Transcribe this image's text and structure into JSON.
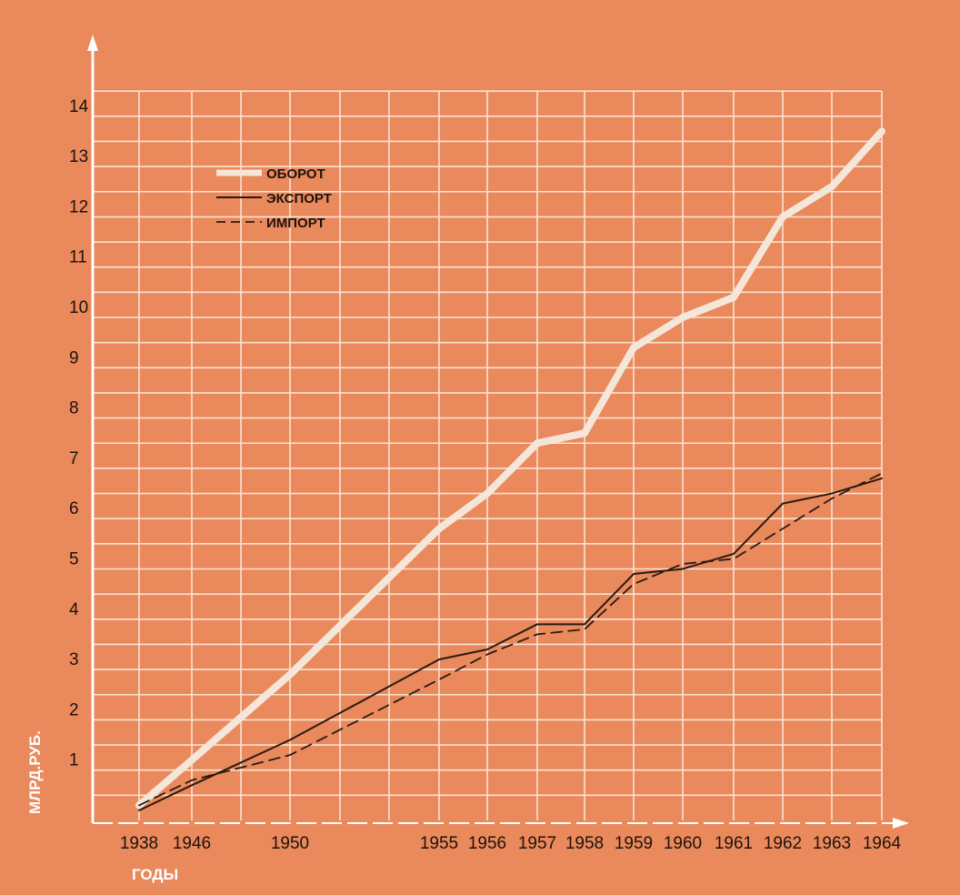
{
  "chart_data": {
    "type": "line",
    "title": "",
    "xlabel": "ГОДЫ",
    "ylabel": "МЛРД.РУБ.",
    "x": [
      1938,
      1946,
      1950,
      1955,
      1956,
      1957,
      1958,
      1959,
      1960,
      1961,
      1962,
      1963,
      1964
    ],
    "x_tick_labels": [
      "1938",
      "1946",
      "1950",
      "1955",
      "1956",
      "1957",
      "1958",
      "1959",
      "1960",
      "1961",
      "1962",
      "1963",
      "1964"
    ],
    "y_tick_labels": [
      "1",
      "2",
      "3",
      "4",
      "5",
      "6",
      "7",
      "8",
      "9",
      "10",
      "11",
      "12",
      "13",
      "14"
    ],
    "ylim": [
      0,
      14.5
    ],
    "grid": true,
    "legend_position": "top-left",
    "series": [
      {
        "name": "ОБОРОТ",
        "style": "thick-light",
        "color": "#f4e6d8",
        "points": [
          [
            1938,
            0.3
          ],
          [
            1946,
            1.2
          ],
          [
            1950,
            2.9
          ],
          [
            1955,
            5.8
          ],
          [
            1956,
            6.5
          ],
          [
            1957,
            7.5
          ],
          [
            1958,
            7.7
          ],
          [
            1959,
            9.4
          ],
          [
            1960,
            10.0
          ],
          [
            1961,
            10.4
          ],
          [
            1962,
            12.0
          ],
          [
            1963,
            12.6
          ],
          [
            1964,
            13.7
          ]
        ]
      },
      {
        "name": "ЭКСПОРТ",
        "style": "solid",
        "color": "#2a1a12",
        "points": [
          [
            1938,
            0.2
          ],
          [
            1946,
            0.7
          ],
          [
            1950,
            1.6
          ],
          [
            1955,
            3.2
          ],
          [
            1956,
            3.4
          ],
          [
            1957,
            3.9
          ],
          [
            1958,
            3.9
          ],
          [
            1959,
            4.9
          ],
          [
            1960,
            5.0
          ],
          [
            1961,
            5.3
          ],
          [
            1962,
            6.3
          ],
          [
            1963,
            6.5
          ],
          [
            1964,
            6.8
          ]
        ]
      },
      {
        "name": "ИМПОРТ",
        "style": "dashed",
        "color": "#2a1a12",
        "points": [
          [
            1938,
            0.3
          ],
          [
            1946,
            0.8
          ],
          [
            1950,
            1.3
          ],
          [
            1955,
            2.8
          ],
          [
            1956,
            3.3
          ],
          [
            1957,
            3.7
          ],
          [
            1958,
            3.8
          ],
          [
            1959,
            4.7
          ],
          [
            1960,
            5.1
          ],
          [
            1961,
            5.2
          ],
          [
            1962,
            5.8
          ],
          [
            1963,
            6.4
          ],
          [
            1964,
            6.9
          ]
        ]
      }
    ]
  },
  "colors": {
    "background": "#e9895c",
    "grid": "#fbe3d4",
    "axis": "#ffffff",
    "text": "#1e120c"
  }
}
